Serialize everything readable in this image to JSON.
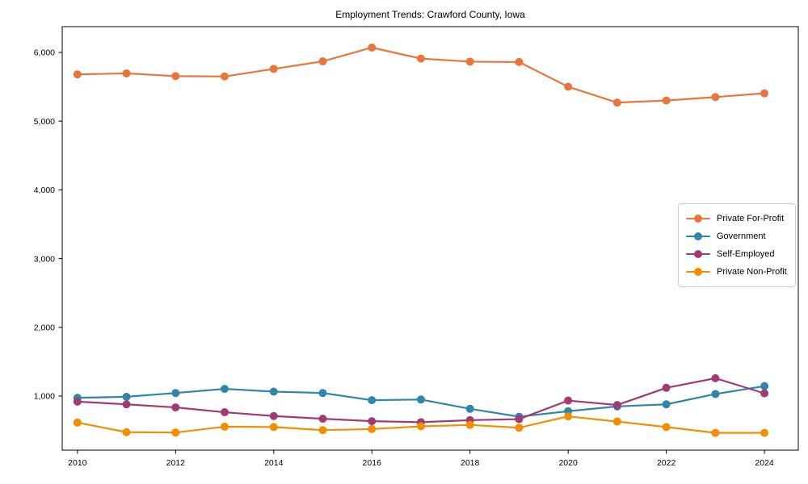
{
  "chart_data": {
    "type": "line",
    "title": "Employment Trends: Crawford County, Iowa",
    "xlabel": "",
    "ylabel": "",
    "grid": false,
    "legend_position": "center right",
    "xlim": [
      2009.69,
      2024.69
    ],
    "ylim": [
      214,
      6375
    ],
    "x": [
      2010,
      2011,
      2012,
      2013,
      2014,
      2015,
      2016,
      2017,
      2018,
      2019,
      2020,
      2021,
      2022,
      2023,
      2024
    ],
    "x_ticks": [
      {
        "value": 2010,
        "label": "2010"
      },
      {
        "value": 2012,
        "label": "2012"
      },
      {
        "value": 2014,
        "label": "2014"
      },
      {
        "value": 2016,
        "label": "2016"
      },
      {
        "value": 2018,
        "label": "2018"
      },
      {
        "value": 2020,
        "label": "2020"
      },
      {
        "value": 2022,
        "label": "2022"
      },
      {
        "value": 2024,
        "label": "2024"
      }
    ],
    "y_ticks": [
      {
        "value": 1000,
        "label": "1,000"
      },
      {
        "value": 2000,
        "label": "2,000"
      },
      {
        "value": 3000,
        "label": "3,000"
      },
      {
        "value": 4000,
        "label": "4,000"
      },
      {
        "value": 5000,
        "label": "5,000"
      },
      {
        "value": 6000,
        "label": "6,000"
      }
    ],
    "series": [
      {
        "name": "Private For-Profit",
        "color": "#e8763c",
        "values": [
          5680,
          5695,
          5655,
          5650,
          5760,
          5870,
          6070,
          5910,
          5865,
          5860,
          5500,
          5270,
          5300,
          5350,
          5405
        ]
      },
      {
        "name": "Government",
        "color": "#2e86ab",
        "values": [
          975,
          990,
          1045,
          1105,
          1065,
          1045,
          940,
          950,
          815,
          700,
          780,
          850,
          880,
          1030,
          1145
        ]
      },
      {
        "name": "Self-Employed",
        "color": "#a23b72",
        "values": [
          920,
          880,
          835,
          765,
          710,
          670,
          635,
          620,
          650,
          665,
          935,
          870,
          1120,
          1260,
          1040
        ]
      },
      {
        "name": "Private Non-Profit",
        "color": "#f18f01",
        "values": [
          615,
          475,
          470,
          555,
          550,
          505,
          520,
          560,
          580,
          540,
          705,
          630,
          550,
          465,
          465
        ]
      }
    ]
  }
}
